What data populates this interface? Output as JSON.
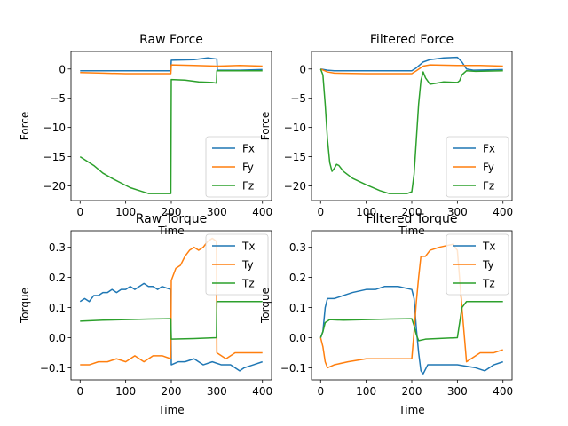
{
  "figure": {
    "background": "#ffffff"
  },
  "colors": {
    "blue": "#1f77b4",
    "orange": "#ff7f0e",
    "green": "#2ca02c"
  },
  "chart_data": [
    {
      "type": "line",
      "title": "Raw Force",
      "xlabel": "Time",
      "ylabel": "Force",
      "xlim": [
        -20,
        420
      ],
      "ylim": [
        -22.5,
        3.0
      ],
      "xticks": [
        0,
        100,
        200,
        300,
        400
      ],
      "yticks": [
        0,
        -5,
        -10,
        -15,
        -20
      ],
      "ytick_labels": [
        "0",
        "−5",
        "−10",
        "−15",
        "−20"
      ],
      "legend": "lower-right",
      "grid": false,
      "series": [
        {
          "name": "Fx",
          "color": "#1f77b4",
          "points": [
            [
              0,
              -0.3
            ],
            [
              50,
              -0.3
            ],
            [
              100,
              -0.3
            ],
            [
              150,
              -0.3
            ],
            [
              199,
              -0.3
            ],
            [
              200,
              1.5
            ],
            [
              250,
              1.6
            ],
            [
              280,
              1.9
            ],
            [
              300,
              1.7
            ],
            [
              301,
              -0.2
            ],
            [
              350,
              -0.2
            ],
            [
              400,
              -0.1
            ]
          ]
        },
        {
          "name": "Fy",
          "color": "#ff7f0e",
          "points": [
            [
              0,
              -0.6
            ],
            [
              50,
              -0.7
            ],
            [
              100,
              -0.8
            ],
            [
              150,
              -0.8
            ],
            [
              199,
              -0.8
            ],
            [
              200,
              0.7
            ],
            [
              250,
              0.6
            ],
            [
              300,
              0.5
            ],
            [
              350,
              0.6
            ],
            [
              400,
              0.5
            ]
          ]
        },
        {
          "name": "Fz",
          "color": "#2ca02c",
          "points": [
            [
              0,
              -15.0
            ],
            [
              10,
              -15.5
            ],
            [
              30,
              -16.5
            ],
            [
              50,
              -17.8
            ],
            [
              70,
              -18.7
            ],
            [
              90,
              -19.5
            ],
            [
              110,
              -20.3
            ],
            [
              130,
              -20.8
            ],
            [
              150,
              -21.3
            ],
            [
              170,
              -21.3
            ],
            [
              199,
              -21.3
            ],
            [
              200,
              -1.8
            ],
            [
              230,
              -1.9
            ],
            [
              260,
              -2.2
            ],
            [
              290,
              -2.3
            ],
            [
              299,
              -2.4
            ],
            [
              300,
              -0.3
            ],
            [
              350,
              -0.3
            ],
            [
              400,
              -0.3
            ]
          ]
        }
      ]
    },
    {
      "type": "line",
      "title": "Filtered Force",
      "xlabel": "Time",
      "ylabel": "Force",
      "xlim": [
        -20,
        420
      ],
      "ylim": [
        -22.5,
        3.0
      ],
      "xticks": [
        0,
        100,
        200,
        300,
        400
      ],
      "yticks": [
        0,
        -5,
        -10,
        -15,
        -20
      ],
      "ytick_labels": [
        "0",
        "−5",
        "−10",
        "−15",
        "−20"
      ],
      "legend": "lower-right",
      "grid": false,
      "series": [
        {
          "name": "Fx",
          "color": "#1f77b4",
          "points": [
            [
              0,
              0
            ],
            [
              15,
              -0.2
            ],
            [
              30,
              -0.3
            ],
            [
              100,
              -0.3
            ],
            [
              200,
              -0.3
            ],
            [
              210,
              0.2
            ],
            [
              225,
              1.2
            ],
            [
              240,
              1.6
            ],
            [
              270,
              1.9
            ],
            [
              300,
              2.0
            ],
            [
              310,
              1.2
            ],
            [
              320,
              0.0
            ],
            [
              335,
              -0.2
            ],
            [
              400,
              -0.1
            ]
          ]
        },
        {
          "name": "Fy",
          "color": "#ff7f0e",
          "points": [
            [
              0,
              0
            ],
            [
              15,
              -0.5
            ],
            [
              30,
              -0.7
            ],
            [
              100,
              -0.8
            ],
            [
              200,
              -0.8
            ],
            [
              210,
              -0.3
            ],
            [
              225,
              0.5
            ],
            [
              240,
              0.7
            ],
            [
              300,
              0.6
            ],
            [
              350,
              0.6
            ],
            [
              400,
              0.5
            ]
          ]
        },
        {
          "name": "Fz",
          "color": "#2ca02c",
          "points": [
            [
              0,
              0
            ],
            [
              5,
              -1
            ],
            [
              10,
              -6
            ],
            [
              15,
              -12
            ],
            [
              20,
              -16
            ],
            [
              25,
              -17.5
            ],
            [
              30,
              -17
            ],
            [
              35,
              -16.3
            ],
            [
              40,
              -16.5
            ],
            [
              50,
              -17.5
            ],
            [
              70,
              -18.7
            ],
            [
              100,
              -19.8
            ],
            [
              130,
              -20.8
            ],
            [
              150,
              -21.3
            ],
            [
              190,
              -21.3
            ],
            [
              200,
              -21.0
            ],
            [
              205,
              -18
            ],
            [
              210,
              -12
            ],
            [
              215,
              -6
            ],
            [
              220,
              -2
            ],
            [
              225,
              -0.5
            ],
            [
              230,
              -1.5
            ],
            [
              240,
              -2.6
            ],
            [
              255,
              -2.4
            ],
            [
              270,
              -2.2
            ],
            [
              300,
              -2.3
            ],
            [
              305,
              -2.0
            ],
            [
              310,
              -1.0
            ],
            [
              320,
              -0.3
            ],
            [
              340,
              -0.4
            ],
            [
              400,
              -0.3
            ]
          ]
        }
      ]
    },
    {
      "type": "line",
      "title": "Raw Torque",
      "xlabel": "Time",
      "ylabel": "Torque",
      "xlim": [
        -20,
        420
      ],
      "ylim": [
        -0.14,
        0.355
      ],
      "xticks": [
        0,
        100,
        200,
        300,
        400
      ],
      "yticks": [
        0.3,
        0.2,
        0.1,
        0.0,
        -0.1
      ],
      "ytick_labels": [
        "0.3",
        "0.2",
        "0.1",
        "0.0",
        "−0.1"
      ],
      "legend": "upper-right",
      "grid": false,
      "series": [
        {
          "name": "Tx",
          "color": "#1f77b4",
          "points": [
            [
              0,
              0.12
            ],
            [
              10,
              0.13
            ],
            [
              20,
              0.12
            ],
            [
              30,
              0.14
            ],
            [
              40,
              0.14
            ],
            [
              50,
              0.15
            ],
            [
              60,
              0.15
            ],
            [
              70,
              0.16
            ],
            [
              80,
              0.15
            ],
            [
              90,
              0.16
            ],
            [
              100,
              0.16
            ],
            [
              110,
              0.17
            ],
            [
              120,
              0.16
            ],
            [
              130,
              0.17
            ],
            [
              140,
              0.18
            ],
            [
              150,
              0.17
            ],
            [
              160,
              0.17
            ],
            [
              170,
              0.16
            ],
            [
              180,
              0.17
            ],
            [
              199,
              0.16
            ],
            [
              200,
              -0.09
            ],
            [
              215,
              -0.08
            ],
            [
              230,
              -0.08
            ],
            [
              250,
              -0.07
            ],
            [
              270,
              -0.09
            ],
            [
              290,
              -0.08
            ],
            [
              310,
              -0.09
            ],
            [
              330,
              -0.09
            ],
            [
              350,
              -0.11
            ],
            [
              360,
              -0.1
            ],
            [
              380,
              -0.09
            ],
            [
              400,
              -0.08
            ]
          ]
        },
        {
          "name": "Ty",
          "color": "#ff7f0e",
          "points": [
            [
              0,
              -0.09
            ],
            [
              20,
              -0.09
            ],
            [
              40,
              -0.08
            ],
            [
              60,
              -0.08
            ],
            [
              80,
              -0.07
            ],
            [
              100,
              -0.08
            ],
            [
              120,
              -0.06
            ],
            [
              140,
              -0.08
            ],
            [
              160,
              -0.06
            ],
            [
              180,
              -0.06
            ],
            [
              199,
              -0.07
            ],
            [
              200,
              0.19
            ],
            [
              210,
              0.23
            ],
            [
              220,
              0.24
            ],
            [
              230,
              0.27
            ],
            [
              240,
              0.29
            ],
            [
              250,
              0.3
            ],
            [
              260,
              0.29
            ],
            [
              270,
              0.3
            ],
            [
              280,
              0.32
            ],
            [
              290,
              0.33
            ],
            [
              299,
              0.32
            ],
            [
              300,
              -0.05
            ],
            [
              320,
              -0.07
            ],
            [
              340,
              -0.05
            ],
            [
              360,
              -0.05
            ],
            [
              380,
              -0.05
            ],
            [
              400,
              -0.05
            ]
          ]
        },
        {
          "name": "Tz",
          "color": "#2ca02c",
          "points": [
            [
              0,
              0.055
            ],
            [
              50,
              0.058
            ],
            [
              100,
              0.06
            ],
            [
              150,
              0.062
            ],
            [
              199,
              0.063
            ],
            [
              200,
              -0.005
            ],
            [
              250,
              -0.003
            ],
            [
              299,
              0.0
            ],
            [
              300,
              0.12
            ],
            [
              350,
              0.12
            ],
            [
              400,
              0.12
            ]
          ]
        }
      ]
    },
    {
      "type": "line",
      "title": "Filtered Torque",
      "xlabel": "Time",
      "ylabel": "Torque",
      "xlim": [
        -20,
        420
      ],
      "ylim": [
        -0.14,
        0.355
      ],
      "xticks": [
        0,
        100,
        200,
        300,
        400
      ],
      "yticks": [
        0.3,
        0.2,
        0.1,
        0.0,
        -0.1
      ],
      "ytick_labels": [
        "0.3",
        "0.2",
        "0.1",
        "0.0",
        "−0.1"
      ],
      "legend": "upper-right",
      "grid": false,
      "series": [
        {
          "name": "Tx",
          "color": "#1f77b4",
          "points": [
            [
              0,
              0
            ],
            [
              5,
              0.02
            ],
            [
              10,
              0.1
            ],
            [
              15,
              0.13
            ],
            [
              30,
              0.13
            ],
            [
              50,
              0.14
            ],
            [
              70,
              0.15
            ],
            [
              100,
              0.16
            ],
            [
              120,
              0.16
            ],
            [
              140,
              0.17
            ],
            [
              170,
              0.17
            ],
            [
              200,
              0.16
            ],
            [
              205,
              0.13
            ],
            [
              210,
              0.03
            ],
            [
              215,
              -0.05
            ],
            [
              220,
              -0.11
            ],
            [
              225,
              -0.12
            ],
            [
              235,
              -0.09
            ],
            [
              260,
              -0.09
            ],
            [
              300,
              -0.09
            ],
            [
              340,
              -0.1
            ],
            [
              360,
              -0.11
            ],
            [
              380,
              -0.09
            ],
            [
              400,
              -0.08
            ]
          ]
        },
        {
          "name": "Ty",
          "color": "#ff7f0e",
          "points": [
            [
              0,
              0
            ],
            [
              5,
              -0.03
            ],
            [
              10,
              -0.08
            ],
            [
              15,
              -0.1
            ],
            [
              30,
              -0.09
            ],
            [
              60,
              -0.08
            ],
            [
              100,
              -0.07
            ],
            [
              150,
              -0.07
            ],
            [
              200,
              -0.07
            ],
            [
              205,
              0.02
            ],
            [
              210,
              0.12
            ],
            [
              215,
              0.2
            ],
            [
              220,
              0.27
            ],
            [
              230,
              0.27
            ],
            [
              240,
              0.29
            ],
            [
              260,
              0.3
            ],
            [
              290,
              0.31
            ],
            [
              300,
              0.29
            ],
            [
              310,
              0.1
            ],
            [
              320,
              -0.08
            ],
            [
              330,
              -0.07
            ],
            [
              350,
              -0.05
            ],
            [
              380,
              -0.05
            ],
            [
              400,
              -0.04
            ]
          ]
        },
        {
          "name": "Tz",
          "color": "#2ca02c",
          "points": [
            [
              0,
              0
            ],
            [
              5,
              0.02
            ],
            [
              10,
              0.05
            ],
            [
              20,
              0.06
            ],
            [
              50,
              0.058
            ],
            [
              100,
              0.06
            ],
            [
              150,
              0.062
            ],
            [
              200,
              0.063
            ],
            [
              205,
              0.04
            ],
            [
              210,
              0.01
            ],
            [
              215,
              -0.01
            ],
            [
              230,
              -0.005
            ],
            [
              300,
              0.0
            ],
            [
              305,
              0.05
            ],
            [
              310,
              0.1
            ],
            [
              320,
              0.12
            ],
            [
              350,
              0.12
            ],
            [
              400,
              0.12
            ]
          ]
        }
      ]
    }
  ]
}
